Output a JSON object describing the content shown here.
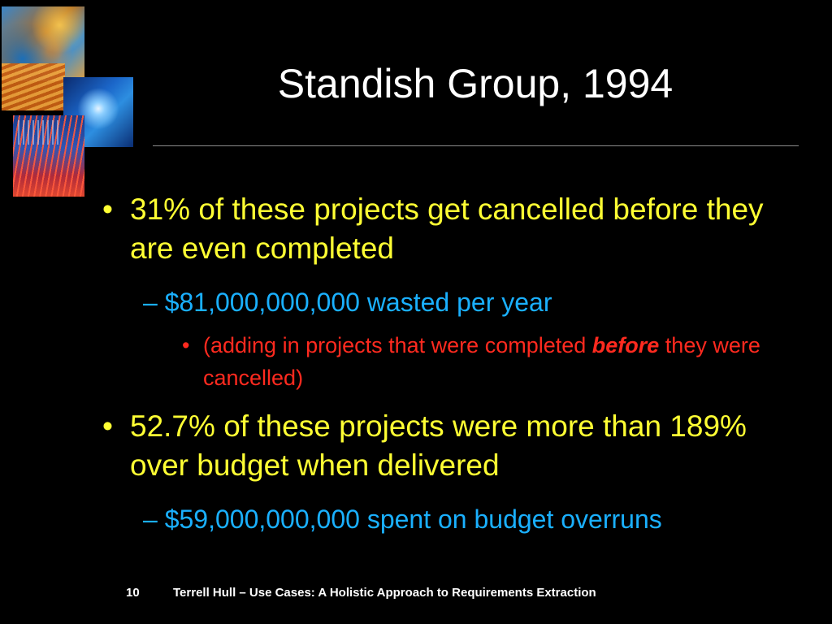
{
  "slide": {
    "title": "Standish Group, 1994",
    "bullets": [
      {
        "marker": "•",
        "text": "31% of these projects get cancelled before they are even completed",
        "sub": {
          "marker": "–",
          "text": "$81,000,000,000 wasted per year",
          "sub": {
            "marker": "•",
            "text_before": "(adding in projects that were completed ",
            "emphasis": "before",
            "text_after": " they were cancelled)"
          }
        }
      },
      {
        "marker": "•",
        "text": "52.7% of these projects were more than 189% over budget when delivered",
        "sub": {
          "marker": "–",
          "text": "$59,000,000,000 spent on budget overruns"
        }
      }
    ],
    "footer": {
      "page_number": "10",
      "text": "Terrell Hull – Use Cases: A Holistic Approach to Requirements Extraction"
    },
    "colors": {
      "background": "#000000",
      "title": "#ffffff",
      "level1": "#ffff33",
      "level2": "#1ab0ff",
      "level3": "#ff2a1f"
    },
    "decoration": "collage-image-top-left"
  }
}
